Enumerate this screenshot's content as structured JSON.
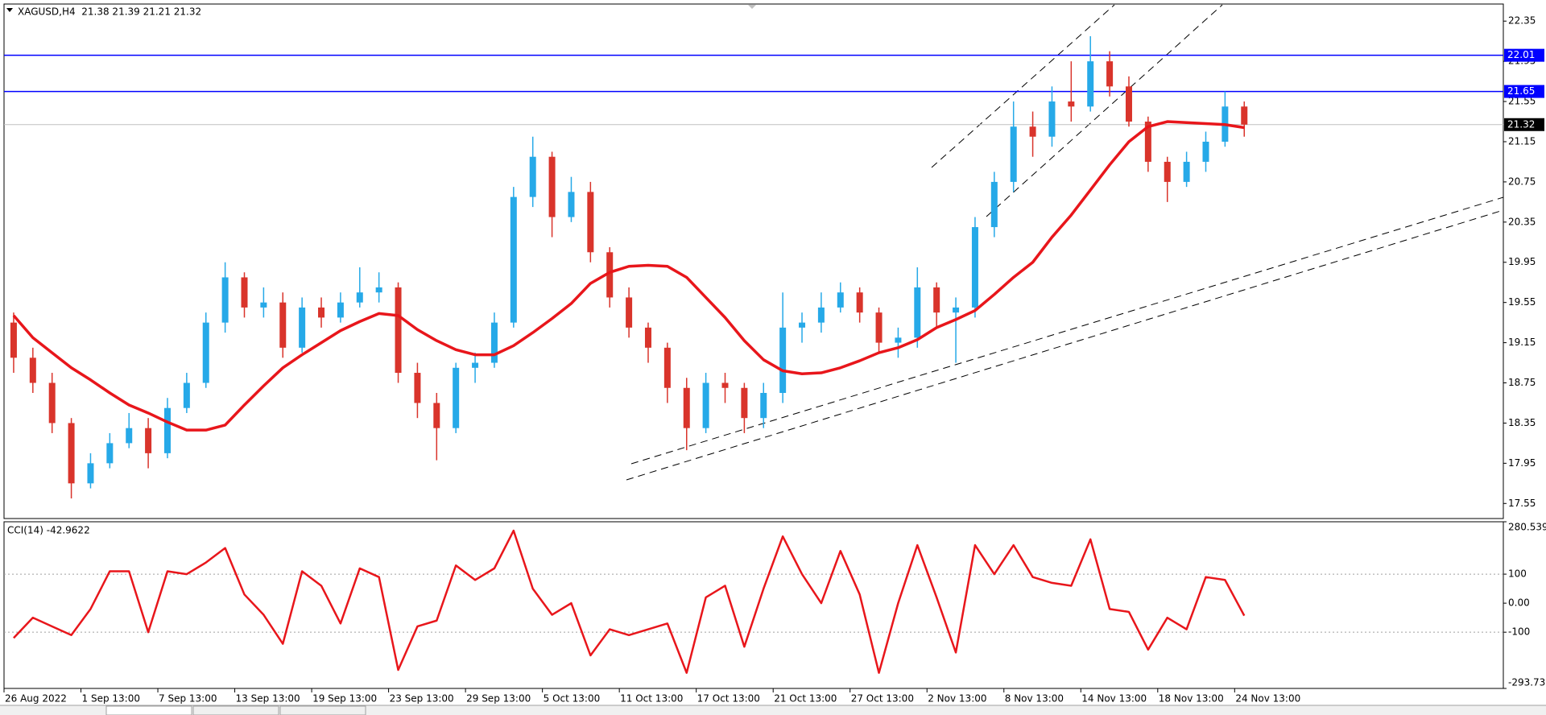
{
  "chart_data": [
    {
      "type": "candlestick",
      "title": "XAGUSD,H4  21.38 21.39 21.21 21.32",
      "categories": [
        "26 Aug 2022",
        null,
        null,
        null,
        "1 Sep 13:00",
        null,
        null,
        null,
        "7 Sep 13:00",
        null,
        null,
        null,
        "13 Sep 13:00",
        null,
        null,
        null,
        "19 Sep 13:00",
        null,
        null,
        null,
        "23 Sep 13:00",
        null,
        null,
        null,
        "29 Sep 13:00",
        null,
        null,
        null,
        "5 Oct 13:00",
        null,
        null,
        null,
        "11 Oct 13:00",
        null,
        null,
        null,
        "17 Oct 13:00",
        null,
        null,
        null,
        "21 Oct 13:00",
        null,
        null,
        null,
        "27 Oct 13:00",
        null,
        null,
        null,
        "2 Nov 13:00",
        null,
        null,
        null,
        "8 Nov 13:00",
        null,
        null,
        null,
        "14 Nov 13:00",
        null,
        null,
        null,
        "18 Nov 13:00",
        null,
        null,
        null,
        "24 Nov 13:00"
      ],
      "open": [
        19.35,
        19.0,
        18.75,
        18.35,
        17.75,
        17.95,
        18.15,
        18.3,
        18.05,
        18.5,
        18.75,
        19.35,
        19.8,
        19.5,
        19.55,
        19.1,
        19.5,
        19.4,
        19.55,
        19.65,
        19.7,
        18.85,
        18.55,
        18.3,
        18.9,
        18.95,
        19.35,
        20.6,
        21.0,
        20.4,
        20.65,
        20.05,
        19.6,
        19.3,
        19.1,
        18.7,
        18.3,
        18.75,
        18.7,
        18.4,
        18.65,
        19.3,
        19.35,
        19.5,
        19.65,
        19.45,
        19.15,
        19.2,
        19.7,
        19.45,
        19.5,
        20.3,
        20.75,
        21.3,
        21.2,
        21.55,
        21.5,
        21.95,
        21.7,
        21.35,
        20.95,
        20.75,
        20.95,
        21.15,
        21.5
      ],
      "high": [
        19.45,
        19.1,
        18.85,
        18.4,
        18.05,
        18.25,
        18.45,
        18.4,
        18.6,
        18.85,
        19.45,
        19.95,
        19.85,
        19.7,
        19.65,
        19.6,
        19.6,
        19.65,
        19.9,
        19.85,
        19.75,
        18.95,
        18.65,
        18.95,
        19.05,
        19.45,
        20.7,
        21.2,
        21.05,
        20.8,
        20.75,
        20.1,
        19.7,
        19.35,
        19.15,
        18.8,
        18.85,
        18.85,
        18.75,
        18.75,
        19.65,
        19.45,
        19.65,
        19.75,
        19.7,
        19.5,
        19.3,
        19.9,
        19.75,
        19.6,
        20.4,
        20.85,
        21.55,
        21.45,
        21.7,
        21.95,
        22.2,
        22.05,
        21.8,
        21.4,
        21.0,
        21.05,
        21.25,
        21.65,
        21.55
      ],
      "low": [
        18.85,
        18.65,
        18.25,
        17.6,
        17.7,
        17.9,
        18.1,
        17.9,
        18.0,
        18.45,
        18.7,
        19.25,
        19.4,
        19.4,
        19.0,
        19.05,
        19.3,
        19.35,
        19.5,
        19.55,
        18.75,
        18.4,
        17.98,
        18.25,
        18.75,
        18.9,
        19.3,
        20.5,
        20.2,
        20.35,
        19.95,
        19.5,
        19.2,
        18.95,
        18.55,
        18.08,
        18.25,
        18.55,
        18.25,
        18.3,
        18.55,
        19.15,
        19.25,
        19.45,
        19.35,
        19.05,
        19.0,
        19.1,
        19.3,
        18.95,
        19.4,
        20.2,
        20.65,
        21.0,
        21.1,
        21.35,
        21.45,
        21.6,
        21.3,
        20.85,
        20.55,
        20.7,
        20.85,
        21.1,
        21.2
      ],
      "close": [
        19.0,
        18.75,
        18.35,
        17.75,
        17.95,
        18.15,
        18.3,
        18.05,
        18.5,
        18.75,
        19.35,
        19.8,
        19.5,
        19.55,
        19.1,
        19.5,
        19.4,
        19.55,
        19.65,
        19.7,
        18.85,
        18.55,
        18.3,
        18.9,
        18.95,
        19.35,
        20.6,
        21.0,
        20.4,
        20.65,
        20.05,
        19.6,
        19.3,
        19.1,
        18.7,
        18.3,
        18.75,
        18.7,
        18.4,
        18.65,
        19.3,
        19.35,
        19.5,
        19.65,
        19.45,
        19.15,
        19.2,
        19.7,
        19.45,
        19.5,
        20.3,
        20.75,
        21.3,
        21.2,
        21.55,
        21.5,
        21.95,
        21.7,
        21.35,
        20.95,
        20.75,
        20.95,
        21.15,
        21.5,
        21.32
      ],
      "up_color": "#26a9e8",
      "down_color": "#d9342b",
      "ma": {
        "color": "#e8161b",
        "values": [
          19.42,
          19.2,
          19.05,
          18.9,
          18.78,
          18.65,
          18.53,
          18.45,
          18.36,
          18.28,
          18.28,
          18.33,
          18.53,
          18.72,
          18.9,
          19.03,
          19.15,
          19.27,
          19.36,
          19.44,
          19.42,
          19.28,
          19.17,
          19.08,
          19.03,
          19.03,
          19.12,
          19.25,
          19.39,
          19.54,
          19.74,
          19.85,
          19.91,
          19.92,
          19.91,
          19.8,
          19.6,
          19.4,
          19.17,
          18.98,
          18.87,
          18.84,
          18.85,
          18.9,
          18.97,
          19.05,
          19.1,
          19.18,
          19.3,
          19.38,
          19.47,
          19.63,
          19.8,
          19.95,
          20.2,
          20.42,
          20.67,
          20.92,
          21.15,
          21.3,
          21.35,
          21.34,
          21.33,
          21.32,
          21.29
        ]
      },
      "levels": [
        {
          "value": 22.01,
          "color": "#0000ff",
          "label_color": "#0000ff"
        },
        {
          "value": 21.65,
          "color": "#0000ff",
          "label_color": "#0000ff"
        },
        {
          "value": 21.32,
          "color": "#c0c0c0",
          "label_color": "#000000"
        }
      ],
      "ylim": [
        17.4,
        22.52
      ],
      "yticks": [
        22.35,
        21.95,
        21.55,
        21.15,
        20.75,
        20.35,
        19.95,
        19.55,
        19.15,
        18.75,
        18.35,
        17.95,
        17.55
      ]
    },
    {
      "type": "line",
      "title": "CCI(14) -42.9622",
      "color": "#e8161b",
      "values": [
        -120,
        -50,
        -80,
        -110,
        -20,
        110,
        110,
        -100,
        110,
        100,
        140,
        190,
        30,
        -40,
        -140,
        110,
        60,
        -70,
        120,
        90,
        -230,
        -80,
        -60,
        130,
        80,
        120,
        250,
        50,
        -40,
        0,
        -180,
        -90,
        -110,
        -90,
        -70,
        -240,
        20,
        60,
        -150,
        50,
        230,
        100,
        0,
        180,
        30,
        -240,
        0,
        200,
        20,
        -170,
        200,
        100,
        200,
        90,
        70,
        60,
        220,
        -20,
        -30,
        -160,
        -50,
        -90,
        90,
        80,
        -42.9622
      ],
      "levels": [
        100,
        -100
      ],
      "ylim": [
        -293.733,
        280.539
      ],
      "yticks": [
        280.539,
        100,
        {
          "value": 0,
          "label": "0.00"
        },
        -100,
        -293.733
      ]
    }
  ]
}
